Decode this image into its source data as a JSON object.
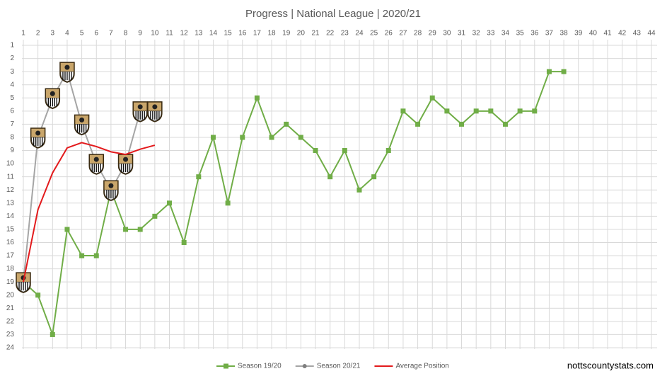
{
  "chart_data": {
    "type": "line",
    "title": "Progress | National League | 2020/21",
    "watermark": "nottscountystats.com",
    "x": [
      1,
      2,
      3,
      4,
      5,
      6,
      7,
      8,
      9,
      10,
      11,
      12,
      13,
      14,
      15,
      16,
      17,
      18,
      19,
      20,
      21,
      22,
      23,
      24,
      25,
      26,
      27,
      28,
      29,
      30,
      31,
      32,
      33,
      34,
      35,
      36,
      37,
      38
    ],
    "series": [
      {
        "name": "Season 19/20",
        "color": "#70ad47",
        "marker": "square",
        "values": [
          19,
          20,
          23,
          15,
          17,
          17,
          12,
          15,
          15,
          14,
          13,
          16,
          11,
          8,
          13,
          8,
          5,
          8,
          7,
          8,
          9,
          11,
          9,
          12,
          11,
          9,
          6,
          7,
          5,
          6,
          7,
          6,
          6,
          7,
          6,
          6,
          3,
          3
        ]
      },
      {
        "name": "Season 20/21",
        "color": "#a5a5a5",
        "marker": "badge",
        "values": [
          19,
          8,
          5,
          3,
          7,
          10,
          12,
          10,
          6,
          6,
          null,
          null,
          null,
          null,
          null,
          null,
          null,
          null,
          null,
          null,
          null,
          null,
          null,
          null,
          null,
          null,
          null,
          null,
          null,
          null,
          null,
          null,
          null,
          null,
          null,
          null,
          null,
          null
        ]
      },
      {
        "name": "Average Position",
        "color": "#e31a1c",
        "marker": "none",
        "values": [
          19,
          13.5,
          10.7,
          8.8,
          8.4,
          8.7,
          9.1,
          9.3,
          8.9,
          8.6,
          null,
          null,
          null,
          null,
          null,
          null,
          null,
          null,
          null,
          null,
          null,
          null,
          null,
          null,
          null,
          null,
          null,
          null,
          null,
          null,
          null,
          null,
          null,
          null,
          null,
          null,
          null,
          null
        ]
      }
    ],
    "xlim": [
      1,
      44
    ],
    "xticks": [
      1,
      2,
      3,
      4,
      5,
      6,
      7,
      8,
      9,
      10,
      11,
      12,
      13,
      14,
      15,
      16,
      17,
      18,
      19,
      20,
      21,
      22,
      23,
      24,
      25,
      26,
      27,
      28,
      29,
      30,
      31,
      32,
      33,
      34,
      35,
      36,
      37,
      38,
      39,
      40,
      41,
      42,
      43,
      44
    ],
    "ylim": [
      1,
      24
    ],
    "yticks": [
      1,
      2,
      3,
      4,
      5,
      6,
      7,
      8,
      9,
      10,
      11,
      12,
      13,
      14,
      15,
      16,
      17,
      18,
      19,
      20,
      21,
      22,
      23,
      24
    ],
    "y_inverted": true,
    "grid": true,
    "legend": "bottom"
  }
}
